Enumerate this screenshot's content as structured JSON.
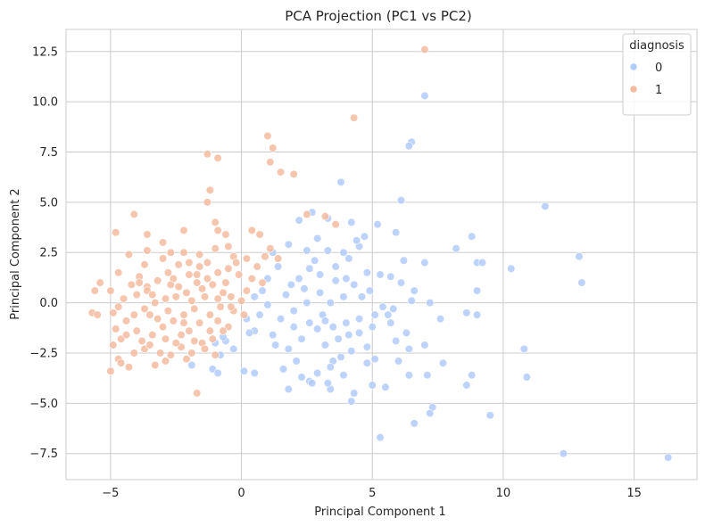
{
  "chart_data": {
    "type": "scatter",
    "title": "PCA Projection (PC1 vs PC2)",
    "xlabel": "Principal Component 1",
    "ylabel": "Principal Component 2",
    "xlim": [
      -6.7,
      17.4
    ],
    "ylim": [
      -8.8,
      13.6
    ],
    "x_ticks": [
      -5,
      0,
      5,
      10,
      15
    ],
    "y_ticks": [
      -7.5,
      -5.0,
      -2.5,
      0.0,
      2.5,
      5.0,
      7.5,
      10.0,
      12.5
    ],
    "x_tick_labels": [
      "−5",
      "0",
      "5",
      "10",
      "15"
    ],
    "y_tick_labels": [
      "−7.5",
      "−5.0",
      "−2.5",
      "0.0",
      "2.5",
      "5.0",
      "7.5",
      "10.0",
      "12.5"
    ],
    "grid": true,
    "legend": {
      "title": "diagnosis",
      "placement": "top-right"
    },
    "series": [
      {
        "name": "0",
        "color": "#b1cbfa",
        "points": [
          [
            16.3,
            -7.7
          ],
          [
            12.3,
            -7.5
          ],
          [
            9.5,
            -5.6
          ],
          [
            7.3,
            -5.2
          ],
          [
            7.2,
            -5.5
          ],
          [
            6.6,
            -6.0
          ],
          [
            5.3,
            -6.7
          ],
          [
            4.2,
            -4.9
          ],
          [
            4.3,
            -4.5
          ],
          [
            3.4,
            -4.3
          ],
          [
            2.6,
            -3.9
          ],
          [
            1.8,
            -4.3
          ],
          [
            3.3,
            -4.0
          ],
          [
            1.6,
            -3.3
          ],
          [
            7.1,
            -3.6
          ],
          [
            6.4,
            -3.6
          ],
          [
            5.0,
            -4.1
          ],
          [
            5.5,
            -4.2
          ],
          [
            8.6,
            -4.1
          ],
          [
            10.9,
            -3.7
          ],
          [
            10.8,
            -2.3
          ],
          [
            7.7,
            -3.0
          ],
          [
            8.8,
            -3.6
          ],
          [
            6.0,
            -2.9
          ],
          [
            4.8,
            -3.0
          ],
          [
            3.9,
            -3.6
          ],
          [
            2.7,
            -4.0
          ],
          [
            -1.1,
            -3.3
          ],
          [
            -0.9,
            -3.5
          ],
          [
            -1.9,
            -3.1
          ],
          [
            -0.8,
            -2.6
          ],
          [
            -0.6,
            -1.9
          ],
          [
            0.1,
            -3.4
          ],
          [
            0.5,
            -3.5
          ],
          [
            1.3,
            -2.1
          ],
          [
            0.5,
            -1.4
          ],
          [
            0.2,
            -0.8
          ],
          [
            0.5,
            0.3
          ],
          [
            0.8,
            0.6
          ],
          [
            1.0,
            -0.1
          ],
          [
            0.7,
            -0.6
          ],
          [
            1.2,
            -1.6
          ],
          [
            0.3,
            -1.5
          ],
          [
            -0.3,
            -2.3
          ],
          [
            -0.7,
            -1.7
          ],
          [
            -1.0,
            -2.0
          ],
          [
            2.1,
            -2.9
          ],
          [
            2.3,
            -3.7
          ],
          [
            2.9,
            -3.5
          ],
          [
            3.5,
            -2.9
          ],
          [
            3.2,
            -2.1
          ],
          [
            3.7,
            -1.8
          ],
          [
            4.1,
            -1.6
          ],
          [
            4.5,
            -1.5
          ],
          [
            4.8,
            -2.2
          ],
          [
            5.1,
            -2.8
          ],
          [
            5.9,
            -1.9
          ],
          [
            6.3,
            -1.5
          ],
          [
            6.4,
            -2.3
          ],
          [
            7.0,
            -2.1
          ],
          [
            5.7,
            -1.0
          ],
          [
            5.4,
            -0.2
          ],
          [
            4.9,
            0.6
          ],
          [
            4.3,
            0.9
          ],
          [
            3.9,
            0.3
          ],
          [
            3.4,
            0.0
          ],
          [
            3.1,
            -0.6
          ],
          [
            2.6,
            -1.0
          ],
          [
            2.0,
            -0.4
          ],
          [
            1.7,
            0.4
          ],
          [
            2.2,
            1.2
          ],
          [
            2.6,
            1.7
          ],
          [
            3.0,
            1.4
          ],
          [
            3.6,
            1.8
          ],
          [
            4.1,
            2.2
          ],
          [
            4.5,
            2.8
          ],
          [
            4.7,
            3.3
          ],
          [
            4.2,
            4.0
          ],
          [
            3.3,
            4.2
          ],
          [
            2.7,
            4.5
          ],
          [
            2.9,
            3.2
          ],
          [
            2.5,
            2.6
          ],
          [
            1.8,
            2.9
          ],
          [
            1.2,
            2.5
          ],
          [
            1.4,
            1.8
          ],
          [
            1.0,
            1.2
          ],
          [
            5.9,
            3.5
          ],
          [
            6.2,
            2.1
          ],
          [
            6.1,
            5.1
          ],
          [
            6.5,
            8.0
          ],
          [
            6.4,
            7.8
          ],
          [
            7.0,
            10.3
          ],
          [
            5.2,
            3.9
          ],
          [
            7.0,
            2.0
          ],
          [
            7.2,
            0.0
          ],
          [
            7.6,
            -0.8
          ],
          [
            8.6,
            -0.5
          ],
          [
            9.0,
            -0.6
          ],
          [
            9.0,
            0.6
          ],
          [
            8.8,
            3.3
          ],
          [
            8.2,
            2.7
          ],
          [
            9.0,
            2.0
          ],
          [
            9.2,
            2.0
          ],
          [
            10.3,
            1.7
          ],
          [
            11.6,
            4.8
          ],
          [
            12.9,
            2.3
          ],
          [
            13.0,
            1.0
          ],
          [
            3.8,
            6.0
          ],
          [
            2.2,
            4.1
          ],
          [
            4.8,
            1.5
          ],
          [
            5.7,
            1.3
          ],
          [
            6.6,
            0.6
          ],
          [
            5.1,
            -0.6
          ],
          [
            4.5,
            -0.8
          ],
          [
            4.0,
            -1.0
          ],
          [
            3.5,
            -1.2
          ],
          [
            2.9,
            -1.3
          ],
          [
            2.3,
            -1.8
          ],
          [
            1.8,
            -2.3
          ],
          [
            6.1,
            1.0
          ],
          [
            6.5,
            0.1
          ],
          [
            4.2,
            -2.4
          ],
          [
            3.8,
            -2.7
          ],
          [
            3.4,
            -3.2
          ],
          [
            5.6,
            -0.6
          ],
          [
            3.6,
            1.1
          ],
          [
            3.0,
            0.5
          ],
          [
            2.5,
            0.0
          ],
          [
            2.0,
            -1.2
          ],
          [
            1.5,
            -0.8
          ],
          [
            1.9,
            0.9
          ],
          [
            2.8,
            2.1
          ],
          [
            3.3,
            2.6
          ],
          [
            3.9,
            2.5
          ],
          [
            4.4,
            3.1
          ],
          [
            5.3,
            1.4
          ],
          [
            4.6,
            0.3
          ],
          [
            3.2,
            -0.9
          ],
          [
            2.4,
            0.7
          ],
          [
            4.0,
            1.2
          ],
          [
            5.0,
            -1.2
          ],
          [
            5.8,
            -0.3
          ]
        ]
      },
      {
        "name": "1",
        "color": "#f4bba0",
        "points": [
          [
            7.0,
            12.6
          ],
          [
            4.3,
            9.2
          ],
          [
            1.0,
            8.3
          ],
          [
            1.2,
            7.7
          ],
          [
            1.1,
            7.0
          ],
          [
            -1.3,
            7.4
          ],
          [
            -0.9,
            7.2
          ],
          [
            1.5,
            6.5
          ],
          [
            2.0,
            6.4
          ],
          [
            -1.2,
            5.6
          ],
          [
            -1.3,
            5.0
          ],
          [
            -1.0,
            4.0
          ],
          [
            3.2,
            4.3
          ],
          [
            2.5,
            4.4
          ],
          [
            3.6,
            3.9
          ],
          [
            -4.1,
            4.4
          ],
          [
            -4.8,
            3.5
          ],
          [
            -3.6,
            3.4
          ],
          [
            -2.2,
            3.6
          ],
          [
            -0.9,
            3.6
          ],
          [
            -0.6,
            3.4
          ],
          [
            0.4,
            3.6
          ],
          [
            0.7,
            3.4
          ],
          [
            -5.6,
            0.6
          ],
          [
            -5.7,
            -0.5
          ],
          [
            -5.5,
            -0.6
          ],
          [
            -5.4,
            1.0
          ],
          [
            -5.0,
            0.6
          ],
          [
            -4.7,
            1.5
          ],
          [
            -4.3,
            2.4
          ],
          [
            -3.9,
            1.3
          ],
          [
            -3.6,
            2.6
          ],
          [
            -3.0,
            3.0
          ],
          [
            -2.7,
            2.5
          ],
          [
            -2.2,
            2.5
          ],
          [
            -1.6,
            2.4
          ],
          [
            -1.0,
            2.7
          ],
          [
            -0.5,
            2.8
          ],
          [
            -0.3,
            2.3
          ],
          [
            0.2,
            2.2
          ],
          [
            0.9,
            2.3
          ],
          [
            1.1,
            2.7
          ],
          [
            -4.9,
            -0.5
          ],
          [
            -4.8,
            -1.3
          ],
          [
            -4.6,
            -1.8
          ],
          [
            -4.9,
            -2.1
          ],
          [
            -4.7,
            -2.8
          ],
          [
            -4.6,
            -3.0
          ],
          [
            -5.0,
            -3.4
          ],
          [
            -4.3,
            -3.2
          ],
          [
            -4.1,
            -2.5
          ],
          [
            -3.7,
            -2.3
          ],
          [
            -3.3,
            -3.1
          ],
          [
            -2.9,
            -2.9
          ],
          [
            -2.7,
            -2.6
          ],
          [
            -2.3,
            -2.2
          ],
          [
            -1.9,
            -2.5
          ],
          [
            -1.7,
            -4.5
          ],
          [
            -1.5,
            -2.0
          ],
          [
            -1.2,
            -1.4
          ],
          [
            -0.9,
            -0.9
          ],
          [
            -0.5,
            -1.2
          ],
          [
            -0.3,
            -0.4
          ],
          [
            0.0,
            0.1
          ],
          [
            0.2,
            0.6
          ],
          [
            0.4,
            1.2
          ],
          [
            -0.1,
            1.4
          ],
          [
            -0.5,
            1.7
          ],
          [
            -0.9,
            1.5
          ],
          [
            -1.3,
            1.2
          ],
          [
            -1.7,
            1.0
          ],
          [
            -2.1,
            0.5
          ],
          [
            -2.5,
            0.3
          ],
          [
            -2.9,
            0.2
          ],
          [
            -3.3,
            0.0
          ],
          [
            -3.7,
            -0.3
          ],
          [
            -4.1,
            -0.6
          ],
          [
            -4.4,
            -0.9
          ],
          [
            -4.0,
            0.4
          ],
          [
            -3.6,
            0.8
          ],
          [
            -3.2,
            1.1
          ],
          [
            -2.8,
            1.5
          ],
          [
            -2.4,
            1.9
          ],
          [
            -2.0,
            2.0
          ],
          [
            -1.6,
            1.8
          ],
          [
            -1.1,
            0.9
          ],
          [
            -0.7,
            0.5
          ],
          [
            -1.4,
            0.3
          ],
          [
            -1.8,
            -0.3
          ],
          [
            -2.2,
            -0.6
          ],
          [
            -2.6,
            -0.9
          ],
          [
            -3.0,
            -1.2
          ],
          [
            -3.4,
            -1.6
          ],
          [
            -3.8,
            -1.9
          ],
          [
            -2.0,
            -1.4
          ],
          [
            -1.6,
            -1.0
          ],
          [
            -1.2,
            -0.6
          ],
          [
            -0.8,
            -0.2
          ],
          [
            -2.4,
            0.8
          ],
          [
            -2.8,
            -0.4
          ],
          [
            -3.2,
            -0.8
          ],
          [
            -3.6,
            0.6
          ],
          [
            -4.2,
            0.9
          ],
          [
            -4.5,
            0.2
          ],
          [
            -4.0,
            -1.4
          ],
          [
            -3.5,
            -2.1
          ],
          [
            -2.9,
            -1.8
          ],
          [
            -2.3,
            -1.6
          ],
          [
            -1.8,
            -1.9
          ],
          [
            -1.4,
            -2.3
          ],
          [
            -1.0,
            -2.6
          ],
          [
            -2.6,
            1.2
          ],
          [
            -2.0,
            1.4
          ],
          [
            -1.5,
            0.7
          ],
          [
            -0.9,
            0.2
          ],
          [
            -0.4,
            -0.2
          ],
          [
            0.1,
            -0.6
          ],
          [
            -3.0,
            2.2
          ],
          [
            -2.5,
            -2.0
          ],
          [
            -1.1,
            -1.8
          ],
          [
            -0.6,
            1.0
          ],
          [
            -1.9,
            0.1
          ],
          [
            -3.9,
            1.0
          ],
          [
            -3.4,
            0.4
          ],
          [
            0.6,
            1.8
          ],
          [
            -0.2,
            2.0
          ],
          [
            1.4,
            2.2
          ],
          [
            0.8,
            1.0
          ],
          [
            -4.4,
            -1.6
          ],
          [
            -3.1,
            -2.5
          ],
          [
            -2.1,
            -2.8
          ],
          [
            -0.7,
            -1.4
          ],
          [
            -3.7,
            1.9
          ],
          [
            -2.7,
            0.9
          ],
          [
            -1.3,
            2.0
          ],
          [
            -0.4,
            0.3
          ],
          [
            -4.7,
            -0.2
          ],
          [
            -3.5,
            -0.6
          ],
          [
            -2.2,
            -1.0
          ],
          [
            -1.7,
            1.4
          ]
        ]
      }
    ]
  }
}
